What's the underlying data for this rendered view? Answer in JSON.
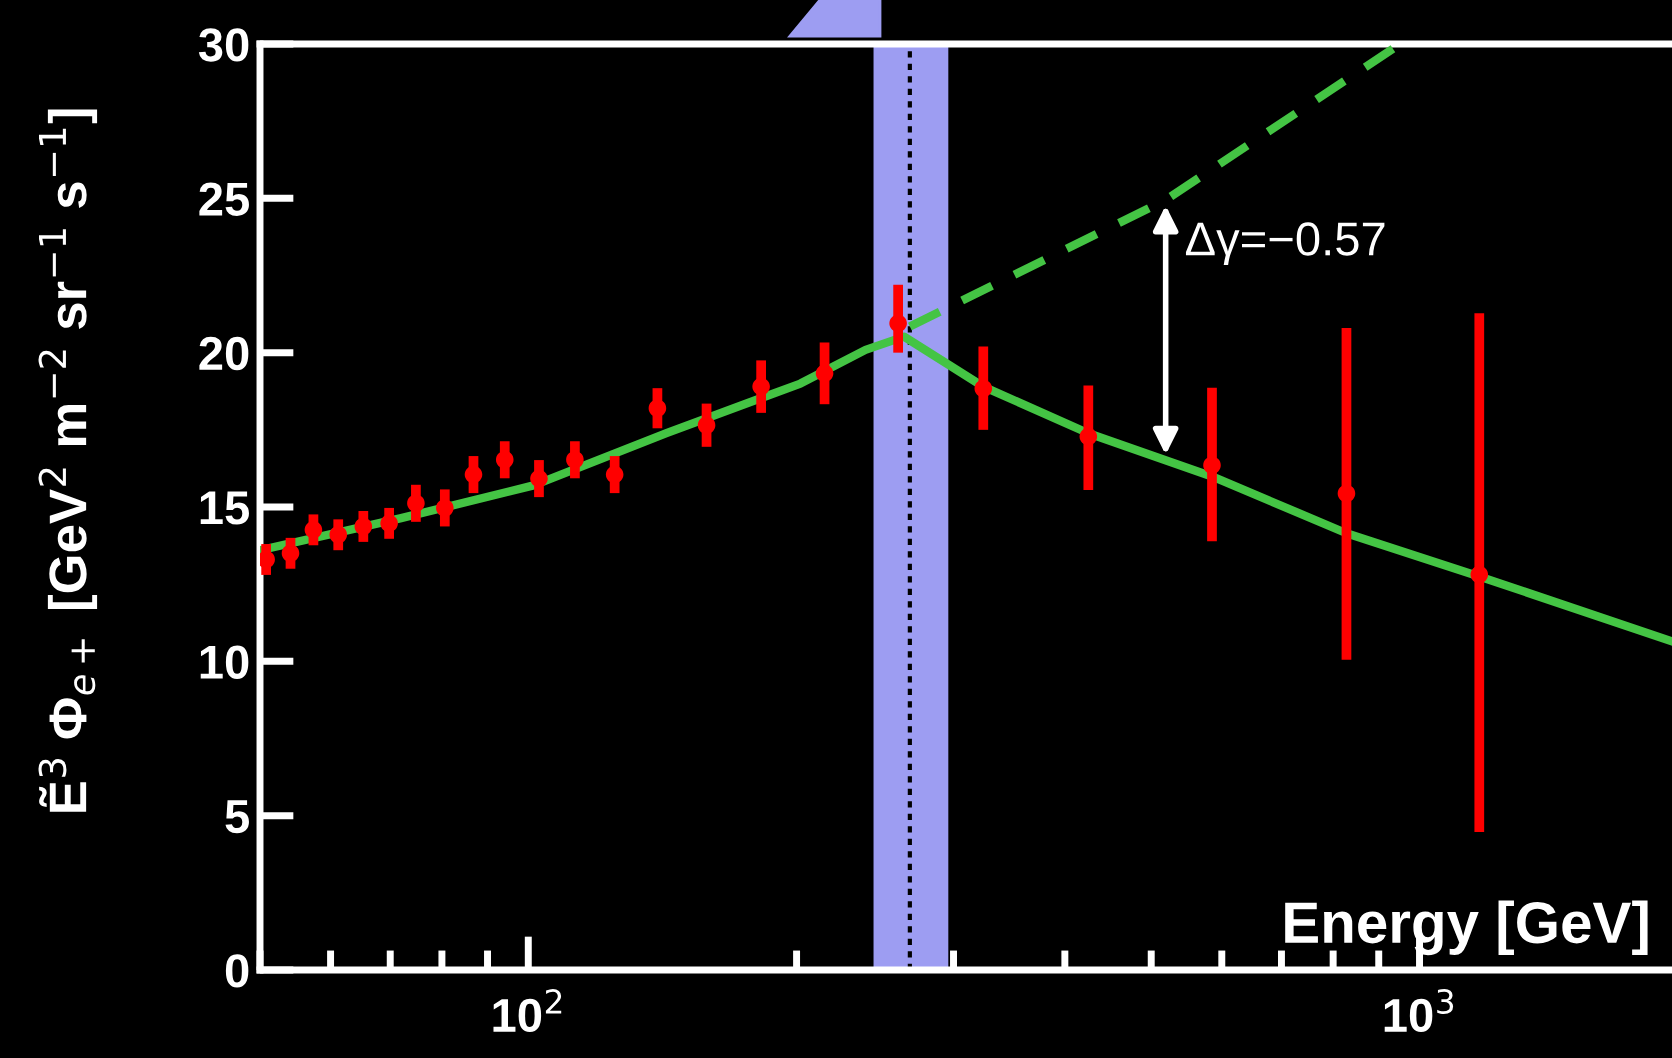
{
  "chart_data": {
    "type": "scatter",
    "xlabel": "Energy [GeV]",
    "ylabel": "Ẽ$^{3}$ Φ$_{e+}$ [GeV$^{2}$ m$^{−2}$ sr$^{−1}$ s$^{−1}$]",
    "log": "x",
    "xlim": [
      50,
      1920
    ],
    "xticks": [
      {
        "value": 100,
        "label": "10$^{2}$"
      },
      {
        "value": 1000,
        "label": "10$^{3}$"
      }
    ],
    "ylim": [
      0,
      30
    ],
    "yticks": [
      0,
      5,
      10,
      15,
      20,
      25,
      30
    ],
    "grid": false,
    "legend": false,
    "series": [
      {
        "type": "line",
        "color": "#44c444",
        "line_style": "solid",
        "marker": "none",
        "x": [
          50,
          71.8,
          101.4,
          142.9,
          202,
          239,
          264,
          324,
          425,
          585,
          828,
          1167,
          1919
        ],
        "values": [
          13.6,
          14.63,
          15.7,
          17.39,
          19.0,
          20.09,
          20.52,
          18.9,
          17.39,
          15.99,
          14.15,
          12.75,
          10.65
        ]
      },
      {
        "type": "line",
        "color": "#44c444",
        "line_style": "dashed",
        "marker": "none",
        "x": [
          268,
          519,
          951
        ],
        "values": [
          20.85,
          24.95,
          30
        ]
      },
      {
        "color": "#ff0000",
        "marker": "circle",
        "x": [
          50.8,
          54.1,
          57.4,
          61.2,
          65.3,
          69.8,
          74.8,
          80.6,
          86.8,
          94.1,
          102.8,
          112.8,
          125,
          139.6,
          158.5,
          182.5,
          215,
          260,
          324,
          425,
          585,
          828,
          1167
        ],
        "values": [
          13.3,
          13.5,
          14.26,
          14.1,
          14.37,
          14.47,
          15.12,
          14.97,
          16.05,
          16.53,
          15.92,
          16.53,
          16.05,
          18.2,
          17.65,
          18.9,
          19.33,
          20.95,
          18.84,
          17.28,
          16.35,
          15.44,
          12.81
        ],
        "errors": [
          0.5,
          0.5,
          0.5,
          0.5,
          0.5,
          0.5,
          0.6,
          0.6,
          0.6,
          0.6,
          0.6,
          0.6,
          0.6,
          0.65,
          0.7,
          0.85,
          1.0,
          [
            20.0,
            22.2
          ],
          [
            17.5,
            20.2
          ],
          [
            15.55,
            18.94
          ],
          [
            13.89,
            18.86
          ],
          [
            10.05,
            20.8
          ],
          [
            4.47,
            21.28
          ]
        ]
      }
    ],
    "bands": [
      {
        "axis": "x",
        "from": 244,
        "to": 296,
        "color": "#9d9df2"
      }
    ],
    "ref_lines": [
      {
        "axis": "x",
        "value": 268,
        "color": "#000000",
        "line_style": "dotted"
      }
    ],
    "annotations": [
      "Δγ=−0.57"
    ]
  }
}
